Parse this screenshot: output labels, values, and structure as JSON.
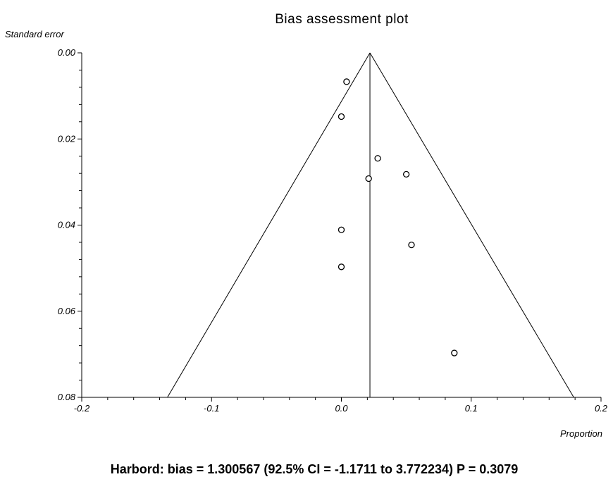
{
  "chart_data": {
    "type": "scatter",
    "title": "Bias assessment plot",
    "xlabel": "Proportion",
    "ylabel": "Standard error",
    "xlim": [
      -0.2,
      0.2
    ],
    "ylim": [
      0.0,
      0.08
    ],
    "y_inverted": true,
    "grid": false,
    "x_ticks": [
      -0.2,
      -0.1,
      0.0,
      0.1,
      0.2
    ],
    "x_tick_labels": [
      "-0.2",
      "-0.1",
      "0.0",
      "0.1",
      "0.2"
    ],
    "y_ticks": [
      0.0,
      0.02,
      0.04,
      0.06,
      0.08
    ],
    "y_tick_labels": [
      "0.00",
      "0.02",
      "0.04",
      "0.06",
      "0.08"
    ],
    "pooled_estimate": 0.022,
    "funnel": {
      "apex": [
        0.022,
        0.0
      ],
      "left_base": [
        -0.134,
        0.08
      ],
      "right_base": [
        0.179,
        0.08
      ]
    },
    "points": [
      {
        "x": 0.004,
        "y": 0.0067
      },
      {
        "x": 0.0,
        "y": 0.0148
      },
      {
        "x": 0.028,
        "y": 0.0245
      },
      {
        "x": 0.05,
        "y": 0.0282
      },
      {
        "x": 0.021,
        "y": 0.0292
      },
      {
        "x": 0.0,
        "y": 0.0411
      },
      {
        "x": 0.054,
        "y": 0.0446
      },
      {
        "x": 0.0,
        "y": 0.0497
      },
      {
        "x": 0.087,
        "y": 0.0697
      }
    ]
  },
  "footer": {
    "text": "Harbord: bias = 1.300567 (92.5% CI = -1.1711 to 3.772234) P = 0.3079"
  }
}
